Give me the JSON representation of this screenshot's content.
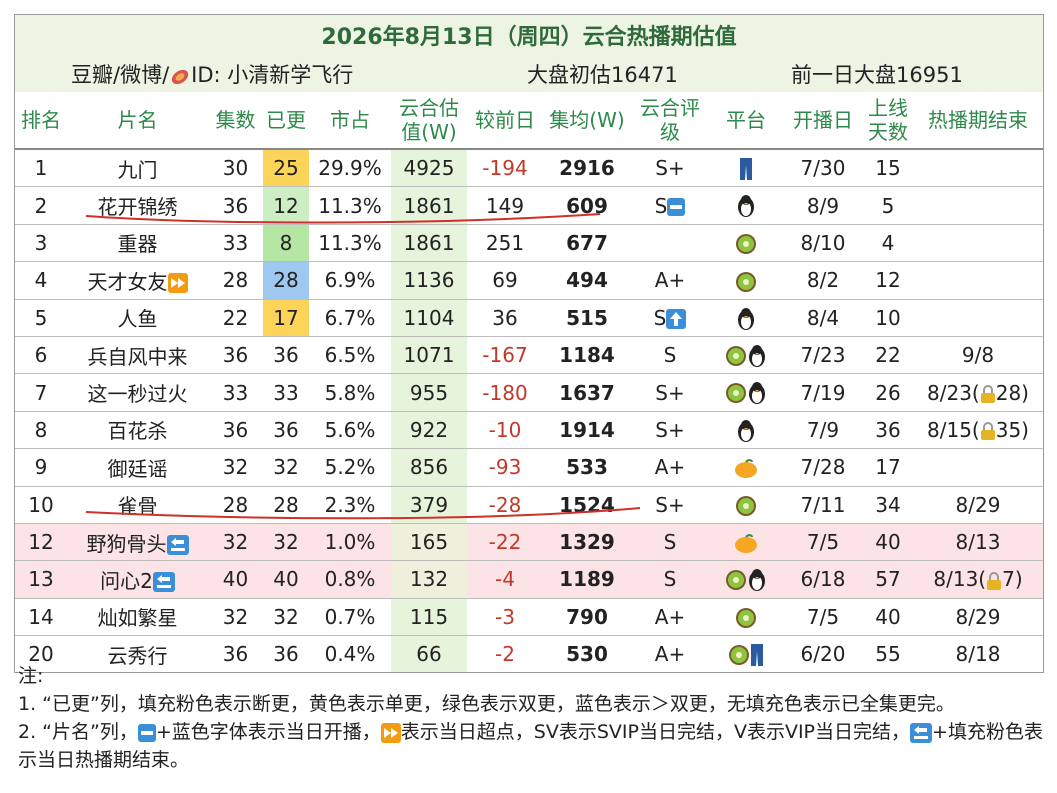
{
  "header": {
    "title": "2026年8月13日（周四）云合热播期估值",
    "source": [
      "豆瓣/微博/",
      "ID: 小清新学飞行"
    ],
    "initial": "大盘初估16471",
    "previous": "前一日大盘16951"
  },
  "table": {
    "columns": [
      "排名",
      "片名",
      "集数",
      "已更",
      "市占",
      "云合估值(W)",
      "较前日",
      "集均(W)",
      "云合评级",
      "平台",
      "开播日",
      "上线天数",
      "热播期结束"
    ],
    "rows": [
      [
        1,
        "九门",
        30,
        25,
        "29.9%",
        4925,
        -194,
        2916,
        "S+",
        null,
        "7/30",
        15,
        null
      ],
      [
        2,
        "花开锦绣",
        36,
        12,
        "11.3%",
        1861,
        149,
        609,
        "S",
        null,
        "8/9",
        5,
        null
      ],
      [
        3,
        "重器",
        33,
        8,
        "11.3%",
        1861,
        251,
        677,
        null,
        null,
        "8/10",
        4,
        null
      ],
      [
        4,
        "天才女友",
        28,
        28,
        "6.9%",
        1136,
        69,
        494,
        "A+",
        null,
        "8/2",
        12,
        null
      ],
      [
        5,
        "人鱼",
        22,
        17,
        "6.7%",
        1104,
        36,
        515,
        "S",
        null,
        "8/4",
        10,
        null
      ],
      [
        6,
        "兵自风中来",
        36,
        36,
        "6.5%",
        1071,
        -167,
        1184,
        "S",
        null,
        "7/23",
        22,
        "9/8"
      ],
      [
        7,
        "这一秒过火",
        33,
        33,
        "5.8%",
        955,
        -180,
        1637,
        "S+",
        null,
        "7/19",
        26,
        [
          "8/23(",
          "28)"
        ]
      ],
      [
        8,
        "百花杀",
        36,
        36,
        "5.6%",
        922,
        -10,
        1914,
        "S+",
        null,
        "7/9",
        36,
        [
          "8/15(",
          "35)"
        ]
      ],
      [
        9,
        "御廷谣",
        32,
        32,
        "5.2%",
        856,
        -93,
        533,
        "A+",
        null,
        "7/28",
        17,
        null
      ],
      [
        10,
        "雀骨",
        28,
        28,
        "2.3%",
        379,
        -28,
        1524,
        "S+",
        null,
        "7/11",
        34,
        "8/29"
      ],
      [
        12,
        "野狗骨头",
        32,
        32,
        "1.0%",
        165,
        -22,
        1329,
        "S",
        null,
        "7/5",
        40,
        "8/13"
      ],
      [
        13,
        "问心2",
        40,
        40,
        "0.8%",
        132,
        -4,
        1189,
        "S",
        null,
        "6/18",
        57,
        [
          "8/13(",
          "7)"
        ]
      ],
      [
        14,
        "灿如繁星",
        32,
        32,
        "0.7%",
        115,
        -3,
        790,
        "A+",
        null,
        "7/5",
        40,
        "8/29"
      ],
      [
        20,
        "云秀行",
        36,
        36,
        "0.4%",
        66,
        -2,
        530,
        "A+",
        null,
        "6/20",
        55,
        "8/18"
      ]
    ]
  },
  "notes": {
    "label": "注:",
    "items": [
      [
        "1. “已更”列，填充粉色表示断更，黄色表示单更，绿色表示双更，蓝色表示＞双更，无填充色表示已全集更完。"
      ],
      [
        "2. “片名”列，",
        "+蓝色字体表示当日开播，",
        "表示当日超点，SV表示SVIP当日完结，V表示VIP当日完结，",
        "+填充粉色表示当日热播期结束。"
      ]
    ]
  }
}
